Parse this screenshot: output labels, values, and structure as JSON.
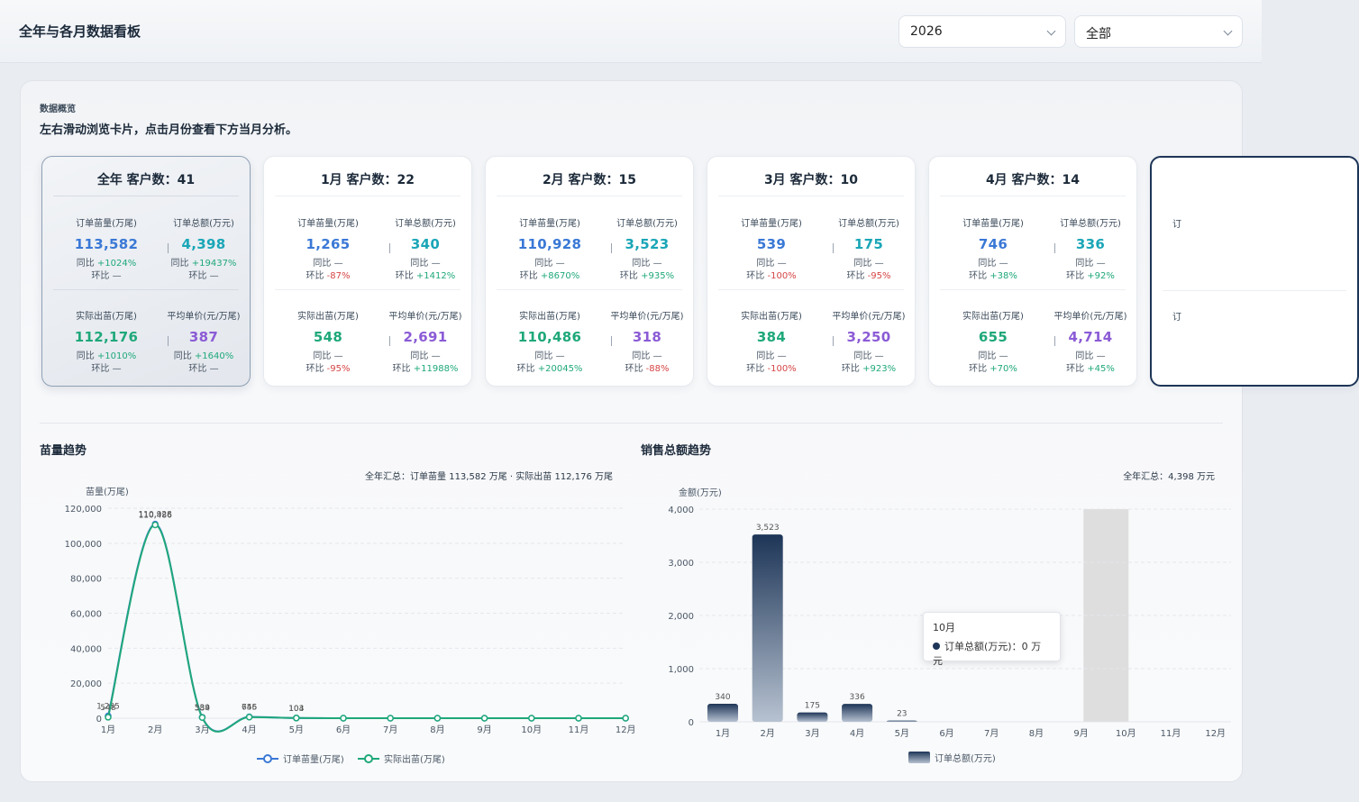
{
  "header": {
    "title": "全年与各月数据看板",
    "year_select": "2026",
    "scope_select": "全部"
  },
  "overview": {
    "label": "数据概览",
    "hint": "左右滑动浏览卡片，点击月份查看下方当月分析。"
  },
  "cards": [
    {
      "title": "全年 客户数：41",
      "metrics": [
        {
          "label": "订单苗量(万尾)",
          "value": "113,582",
          "color": "blue",
          "yoy": "+1024%",
          "mom": "—",
          "yoy_sign": "pos",
          "mom_sign": "none"
        },
        {
          "label": "实际出苗(万尾)",
          "value": "112,176",
          "color": "green",
          "yoy": "+1010%",
          "mom": "—",
          "yoy_sign": "pos",
          "mom_sign": "none"
        },
        {
          "label": "订单总额(万元)",
          "value": "4,398",
          "color": "teal",
          "yoy": "+19437%",
          "mom": "—",
          "yoy_sign": "pos",
          "mom_sign": "none"
        },
        {
          "label": "平均单价(元/万尾)",
          "value": "387",
          "color": "purple",
          "yoy": "+1640%",
          "mom": "—",
          "yoy_sign": "pos",
          "mom_sign": "none"
        }
      ]
    },
    {
      "title": "1月 客户数：22",
      "metrics": [
        {
          "label": "订单苗量(万尾)",
          "value": "1,265",
          "color": "blue",
          "yoy": "—",
          "mom": "-87%",
          "yoy_sign": "none",
          "mom_sign": "neg"
        },
        {
          "label": "实际出苗(万尾)",
          "value": "548",
          "color": "green",
          "yoy": "—",
          "mom": "-95%",
          "yoy_sign": "none",
          "mom_sign": "neg"
        },
        {
          "label": "订单总额(万元)",
          "value": "340",
          "color": "teal",
          "yoy": "—",
          "mom": "+1412%",
          "yoy_sign": "none",
          "mom_sign": "pos"
        },
        {
          "label": "平均单价(元/万尾)",
          "value": "2,691",
          "color": "purple",
          "yoy": "—",
          "mom": "+11988%",
          "yoy_sign": "none",
          "mom_sign": "pos"
        }
      ]
    },
    {
      "title": "2月 客户数：15",
      "metrics": [
        {
          "label": "订单苗量(万尾)",
          "value": "110,928",
          "color": "blue",
          "yoy": "—",
          "mom": "+8670%",
          "yoy_sign": "none",
          "mom_sign": "pos"
        },
        {
          "label": "实际出苗(万尾)",
          "value": "110,486",
          "color": "green",
          "yoy": "—",
          "mom": "+20045%",
          "yoy_sign": "none",
          "mom_sign": "pos"
        },
        {
          "label": "订单总额(万元)",
          "value": "3,523",
          "color": "teal",
          "yoy": "—",
          "mom": "+935%",
          "yoy_sign": "none",
          "mom_sign": "pos"
        },
        {
          "label": "平均单价(元/万尾)",
          "value": "318",
          "color": "purple",
          "yoy": "—",
          "mom": "-88%",
          "yoy_sign": "none",
          "mom_sign": "neg"
        }
      ]
    },
    {
      "title": "3月 客户数：10",
      "metrics": [
        {
          "label": "订单苗量(万尾)",
          "value": "539",
          "color": "blue",
          "yoy": "—",
          "mom": "-100%",
          "yoy_sign": "none",
          "mom_sign": "neg"
        },
        {
          "label": "实际出苗(万尾)",
          "value": "384",
          "color": "green",
          "yoy": "—",
          "mom": "-100%",
          "yoy_sign": "none",
          "mom_sign": "neg"
        },
        {
          "label": "订单总额(万元)",
          "value": "175",
          "color": "teal",
          "yoy": "—",
          "mom": "-95%",
          "yoy_sign": "none",
          "mom_sign": "neg"
        },
        {
          "label": "平均单价(元/万尾)",
          "value": "3,250",
          "color": "purple",
          "yoy": "—",
          "mom": "+923%",
          "yoy_sign": "none",
          "mom_sign": "pos"
        }
      ]
    },
    {
      "title": "4月 客户数：14",
      "metrics": [
        {
          "label": "订单苗量(万尾)",
          "value": "746",
          "color": "blue",
          "yoy": "—",
          "mom": "+38%",
          "yoy_sign": "none",
          "mom_sign": "pos"
        },
        {
          "label": "实际出苗(万尾)",
          "value": "655",
          "color": "green",
          "yoy": "—",
          "mom": "+70%",
          "yoy_sign": "none",
          "mom_sign": "pos"
        },
        {
          "label": "订单总额(万元)",
          "value": "336",
          "color": "teal",
          "yoy": "—",
          "mom": "+92%",
          "yoy_sign": "none",
          "mom_sign": "pos"
        },
        {
          "label": "平均单价(元/万尾)",
          "value": "4,714",
          "color": "purple",
          "yoy": "—",
          "mom": "+45%",
          "yoy_sign": "none",
          "mom_sign": "pos"
        }
      ]
    }
  ],
  "partial_card_labels": [
    "订",
    "订"
  ],
  "text": {
    "yoy": "同比",
    "mom": "环比"
  },
  "chart_data": [
    {
      "type": "line",
      "title": "苗量趋势",
      "summary": "全年汇总：订单苗量 113,582 万尾 · 实际出苗 112,176 万尾",
      "ylabel": "苗量(万尾)",
      "ylim": [
        0,
        120000
      ],
      "yticks": [
        "0",
        "20,000",
        "40,000",
        "60,000",
        "80,000",
        "100,000",
        "120,000"
      ],
      "categories": [
        "1月",
        "2月",
        "3月",
        "4月",
        "5月",
        "6月",
        "7月",
        "8月",
        "9月",
        "10月",
        "11月",
        "12月"
      ],
      "series": [
        {
          "name": "订单苗量(万尾)",
          "color": "#3a78d6",
          "values": [
            1265,
            110928,
            539,
            746,
            104,
            0,
            0,
            0,
            0,
            0,
            0,
            0
          ],
          "labels": [
            "1,265",
            "110,928",
            "539",
            "746",
            "104"
          ]
        },
        {
          "name": "实际出苗(万尾)",
          "color": "#1fa87a",
          "values": [
            548,
            110486,
            384,
            655,
            103,
            0,
            0,
            0,
            0,
            0,
            0,
            0
          ],
          "labels": [
            "548",
            "110,486",
            "384",
            "655",
            "103"
          ]
        }
      ],
      "legend": "bottom"
    },
    {
      "type": "bar",
      "title": "销售总额趋势",
      "summary": "全年汇总：4,398 万元",
      "ylabel": "金额(万元)",
      "ylim": [
        0,
        4000
      ],
      "yticks": [
        "0",
        "1,000",
        "2,000",
        "3,000",
        "4,000"
      ],
      "categories": [
        "1月",
        "2月",
        "3月",
        "4月",
        "5月",
        "6月",
        "7月",
        "8月",
        "9月",
        "10月",
        "11月",
        "12月"
      ],
      "series": [
        {
          "name": "订单总额(万元)",
          "color": "#1d3557",
          "values": [
            340,
            3523,
            175,
            336,
            23,
            0,
            0,
            0,
            0,
            0,
            0,
            0
          ],
          "labels": [
            "340",
            "3,523",
            "175",
            "336",
            "23"
          ]
        }
      ],
      "legend": "bottom",
      "highlight_index": 9,
      "tooltip": {
        "title": "10月",
        "text": "订单总额(万元)：0 万元"
      }
    }
  ]
}
